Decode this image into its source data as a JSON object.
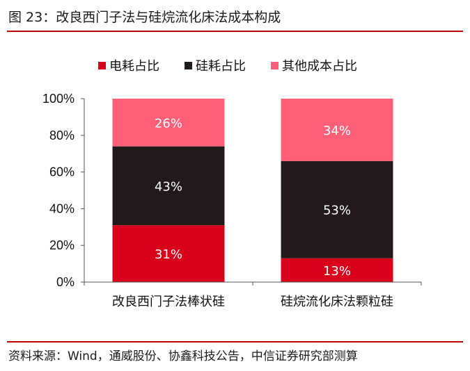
{
  "figure": {
    "title": "图 23：改良西门子法与硅烷流化床法成本构成",
    "source": "资料来源：Wind，通威股份、协鑫科技公告，中信证券研究部测算"
  },
  "chart_data": {
    "type": "bar",
    "stacked": true,
    "categories": [
      "改良西门子法棒状硅",
      "硅烷流化床法颗粒硅"
    ],
    "series": [
      {
        "name": "电耗占比",
        "values": [
          31,
          13
        ],
        "labels": [
          "31%",
          "13%"
        ],
        "color": "#d9001b"
      },
      {
        "name": "硅耗占比",
        "values": [
          43,
          53
        ],
        "labels": [
          "43%",
          "53%"
        ],
        "color": "#221a1a"
      },
      {
        "name": "其他成本占比",
        "values": [
          26,
          34
        ],
        "labels": [
          "26%",
          "34%"
        ],
        "color": "#ff6078"
      }
    ],
    "ylim": [
      0,
      100
    ],
    "yticks": [
      0,
      20,
      40,
      60,
      80,
      100
    ],
    "ytick_labels": [
      "0%",
      "20%",
      "40%",
      "60%",
      "80%",
      "100%"
    ],
    "xlabel": "",
    "ylabel": "",
    "legend_position": "top-center",
    "grid": false
  }
}
